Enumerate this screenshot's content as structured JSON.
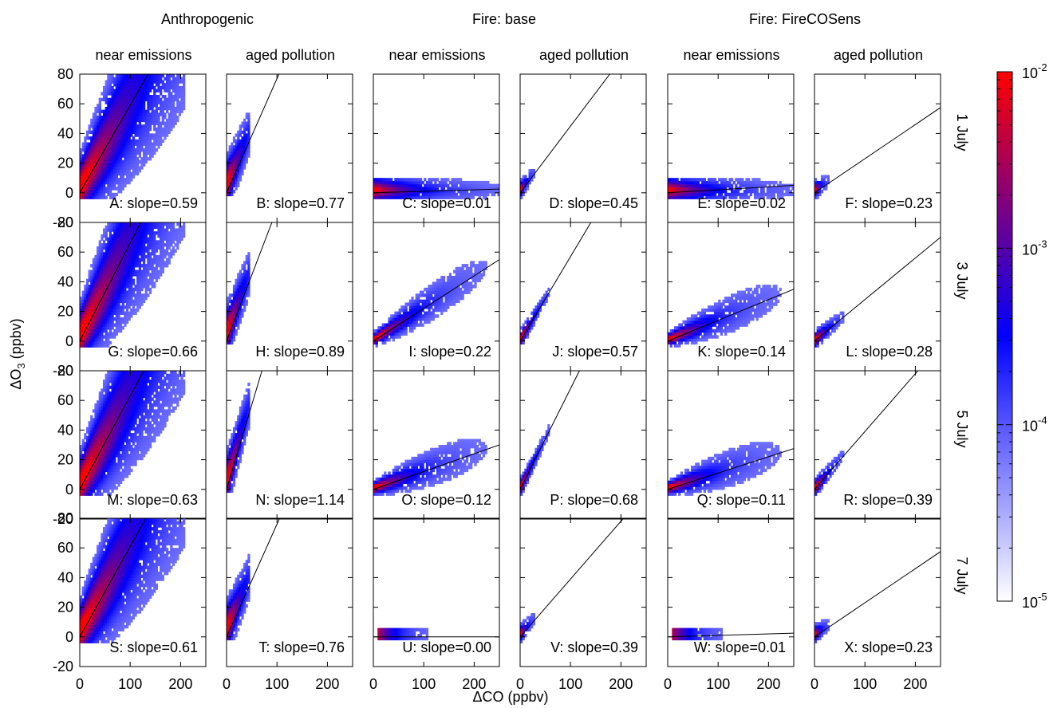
{
  "figure": {
    "group_titles": [
      "Anthropogenic",
      "Fire: base",
      "Fire: FireCOSens"
    ],
    "column_titles": [
      "near emissions",
      "aged pollution",
      "near emissions",
      "aged pollution",
      "near emissions",
      "aged pollution"
    ],
    "row_labels": [
      "1 July",
      "3 July",
      "5 July",
      "7 July"
    ],
    "ylabel_prefix": "ΔO",
    "ylabel_sub": "3",
    "ylabel_suffix": " (ppbv)",
    "xlabel": "ΔCO (ppbv)",
    "colors": {
      "low": "#ffffff",
      "mid": "#0000ff",
      "high": "#ff0000"
    }
  },
  "chart_data": {
    "type": "heatmap",
    "xlim": [
      0,
      250
    ],
    "ylim": [
      -20,
      80
    ],
    "xticks": [
      0,
      100,
      200
    ],
    "yticks": [
      -20,
      0,
      20,
      40,
      60,
      80
    ],
    "colorbar": {
      "scale": "log",
      "min": 1e-05,
      "max": 0.01,
      "ticks": [
        {
          "base": "10",
          "exp": "-5",
          "value": 1e-05
        },
        {
          "base": "10",
          "exp": "-4",
          "value": 0.0001
        },
        {
          "base": "10",
          "exp": "-3",
          "value": 0.001
        },
        {
          "base": "10",
          "exp": "-2",
          "value": 0.01
        }
      ]
    },
    "panels": [
      {
        "label": "A: slope=0.59",
        "slope": 0.59,
        "row": 0,
        "col": 0,
        "cloud": "anthro"
      },
      {
        "label": "B: slope=0.77",
        "slope": 0.77,
        "row": 0,
        "col": 1,
        "cloud": "aged_anthro"
      },
      {
        "label": "C: slope=0.01",
        "slope": 0.01,
        "row": 0,
        "col": 2,
        "cloud": "flat_wide"
      },
      {
        "label": "D: slope=0.45",
        "slope": 0.45,
        "row": 0,
        "col": 3,
        "cloud": "tiny"
      },
      {
        "label": "E: slope=0.02",
        "slope": 0.02,
        "row": 0,
        "col": 4,
        "cloud": "flat_wide"
      },
      {
        "label": "F: slope=0.23",
        "slope": 0.23,
        "row": 0,
        "col": 5,
        "cloud": "tiny"
      },
      {
        "label": "G: slope=0.66",
        "slope": 0.66,
        "row": 1,
        "col": 0,
        "cloud": "anthro"
      },
      {
        "label": "H: slope=0.89",
        "slope": 0.89,
        "row": 1,
        "col": 1,
        "cloud": "aged_anthro"
      },
      {
        "label": "I: slope=0.22",
        "slope": 0.22,
        "row": 1,
        "col": 2,
        "cloud": "fire_line"
      },
      {
        "label": "J: slope=0.57",
        "slope": 0.57,
        "row": 1,
        "col": 3,
        "cloud": "fire_aged"
      },
      {
        "label": "K: slope=0.14",
        "slope": 0.14,
        "row": 1,
        "col": 4,
        "cloud": "fire_line"
      },
      {
        "label": "L: slope=0.28",
        "slope": 0.28,
        "row": 1,
        "col": 5,
        "cloud": "fire_aged"
      },
      {
        "label": "M: slope=0.63",
        "slope": 0.63,
        "row": 2,
        "col": 0,
        "cloud": "anthro"
      },
      {
        "label": "N: slope=1.14",
        "slope": 1.14,
        "row": 2,
        "col": 1,
        "cloud": "aged_anthro"
      },
      {
        "label": "O: slope=0.12",
        "slope": 0.12,
        "row": 2,
        "col": 2,
        "cloud": "fire_line"
      },
      {
        "label": "P: slope=0.68",
        "slope": 0.68,
        "row": 2,
        "col": 3,
        "cloud": "fire_aged"
      },
      {
        "label": "Q: slope=0.11",
        "slope": 0.11,
        "row": 2,
        "col": 4,
        "cloud": "fire_line"
      },
      {
        "label": "R: slope=0.39",
        "slope": 0.39,
        "row": 2,
        "col": 5,
        "cloud": "fire_aged"
      },
      {
        "label": "S: slope=0.61",
        "slope": 0.61,
        "row": 3,
        "col": 0,
        "cloud": "anthro"
      },
      {
        "label": "T: slope=0.76",
        "slope": 0.76,
        "row": 3,
        "col": 1,
        "cloud": "aged_anthro"
      },
      {
        "label": "U: slope=0.00",
        "slope": 0.0,
        "row": 3,
        "col": 2,
        "cloud": "flat_small"
      },
      {
        "label": "V: slope=0.39",
        "slope": 0.39,
        "row": 3,
        "col": 3,
        "cloud": "tiny"
      },
      {
        "label": "W: slope=0.01",
        "slope": 0.01,
        "row": 3,
        "col": 4,
        "cloud": "flat_small"
      },
      {
        "label": "X: slope=0.23",
        "slope": 0.23,
        "row": 3,
        "col": 5,
        "cloud": "tiny"
      }
    ]
  }
}
